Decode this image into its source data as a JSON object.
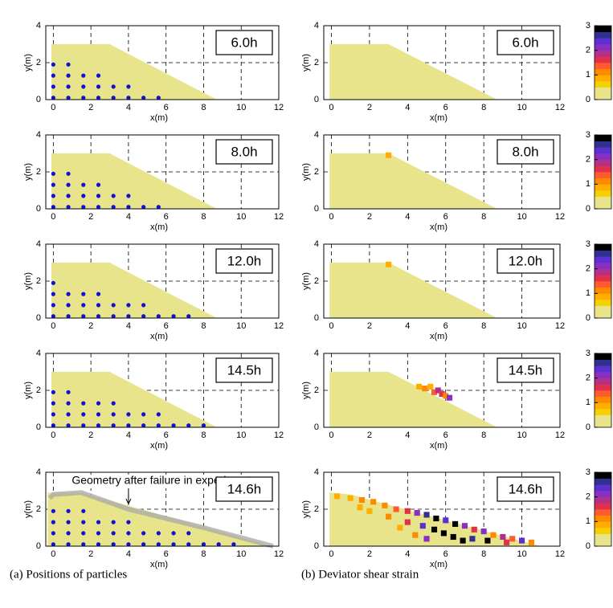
{
  "captions": [
    "(a) Positions of particles",
    "(b) Deviator shear strain"
  ],
  "chart_data": [
    {
      "type": "scatter",
      "label": "6.0h",
      "xlabel": "x(m)",
      "ylabel": "y(m)",
      "xlim": [
        -0.4,
        12
      ],
      "ylim": [
        0,
        4
      ],
      "xticks": [
        0,
        2,
        4,
        6,
        8,
        10,
        12
      ],
      "yticks": [
        0,
        2,
        4
      ],
      "grid": true,
      "soil": {
        "color": "#e8e48c",
        "x": [
          -0.1,
          -0.1,
          3,
          8.7
        ],
        "y": [
          0,
          3,
          3,
          0
        ]
      },
      "particles": {
        "color": "#1010d8",
        "x": [
          0,
          0.8,
          0,
          0.8,
          1.6,
          2.4,
          0,
          0.8,
          1.6,
          2.4,
          3.2,
          4.0,
          0,
          0.8,
          1.6,
          2.4,
          3.2,
          4.0,
          4.8,
          5.6
        ],
        "y": [
          1.9,
          1.9,
          1.3,
          1.3,
          1.3,
          1.3,
          0.7,
          0.7,
          0.7,
          0.7,
          0.7,
          0.7,
          0.1,
          0.1,
          0.1,
          0.1,
          0.1,
          0.1,
          0.1,
          0.1
        ]
      }
    },
    {
      "type": "scatter",
      "label": "8.0h",
      "xlabel": "x(m)",
      "ylabel": "y(m)",
      "xlim": [
        -0.4,
        12
      ],
      "ylim": [
        0,
        4
      ],
      "xticks": [
        0,
        2,
        4,
        6,
        8,
        10,
        12
      ],
      "yticks": [
        0,
        2,
        4
      ],
      "grid": true,
      "soil": {
        "color": "#e8e48c",
        "x": [
          -0.1,
          -0.1,
          3,
          8.7
        ],
        "y": [
          0,
          3,
          3,
          0
        ]
      },
      "particles": {
        "color": "#1010d8",
        "x": [
          0,
          0.8,
          0,
          0.8,
          1.6,
          2.4,
          0,
          0.8,
          1.6,
          2.4,
          3.2,
          4.0,
          0,
          0.8,
          1.6,
          2.4,
          3.2,
          4.0,
          4.8,
          5.6
        ],
        "y": [
          1.9,
          1.9,
          1.3,
          1.3,
          1.3,
          1.3,
          0.7,
          0.7,
          0.7,
          0.7,
          0.7,
          0.7,
          0.1,
          0.1,
          0.1,
          0.1,
          0.1,
          0.1,
          0.1,
          0.1
        ]
      }
    },
    {
      "type": "scatter",
      "label": "12.0h",
      "xlabel": "x(m)",
      "ylabel": "y(m)",
      "xlim": [
        -0.4,
        12
      ],
      "ylim": [
        0,
        4
      ],
      "xticks": [
        0,
        2,
        4,
        6,
        8,
        10,
        12
      ],
      "yticks": [
        0,
        2,
        4
      ],
      "grid": true,
      "soil": {
        "color": "#e8e48c",
        "x": [
          -0.1,
          -0.1,
          3,
          8.7
        ],
        "y": [
          0,
          3,
          3,
          0
        ]
      },
      "particles": {
        "color": "#1010d8",
        "x": [
          0,
          0,
          0.8,
          1.6,
          2.4,
          0,
          0.8,
          1.6,
          2.4,
          3.2,
          4.0,
          4.8,
          0,
          0.8,
          1.6,
          2.4,
          3.2,
          4.0,
          4.8,
          5.6,
          6.4,
          7.2
        ],
        "y": [
          1.9,
          1.3,
          1.3,
          1.3,
          1.3,
          0.7,
          0.7,
          0.7,
          0.7,
          0.7,
          0.7,
          0.7,
          0.1,
          0.1,
          0.1,
          0.1,
          0.1,
          0.1,
          0.1,
          0.1,
          0.1,
          0.1
        ]
      }
    },
    {
      "type": "scatter",
      "label": "14.5h",
      "xlabel": "x(m)",
      "ylabel": "y(m)",
      "xlim": [
        -0.4,
        12
      ],
      "ylim": [
        0,
        4
      ],
      "xticks": [
        0,
        2,
        4,
        6,
        8,
        10,
        12
      ],
      "yticks": [
        0,
        2,
        4
      ],
      "grid": true,
      "soil": {
        "color": "#e8e48c",
        "x": [
          -0.1,
          -0.1,
          3,
          8.7
        ],
        "y": [
          0,
          3,
          3,
          0
        ]
      },
      "particles": {
        "color": "#1010d8",
        "x": [
          0,
          0.8,
          0,
          0.8,
          1.6,
          2.4,
          3.2,
          0,
          0.8,
          1.6,
          2.4,
          3.2,
          4.0,
          4.8,
          5.6,
          0,
          0.8,
          1.6,
          2.4,
          3.2,
          4.0,
          4.8,
          5.6,
          6.4,
          7.2,
          8.0
        ],
        "y": [
          1.9,
          1.9,
          1.3,
          1.3,
          1.3,
          1.3,
          1.3,
          0.7,
          0.7,
          0.7,
          0.7,
          0.7,
          0.7,
          0.7,
          0.7,
          0.1,
          0.1,
          0.1,
          0.1,
          0.1,
          0.1,
          0.1,
          0.1,
          0.1,
          0.1,
          0.1
        ]
      }
    },
    {
      "type": "scatter",
      "label": "14.6h",
      "xlabel": "x(m)",
      "ylabel": "y(m)",
      "xlim": [
        -0.4,
        12
      ],
      "ylim": [
        0,
        4
      ],
      "xticks": [
        0,
        2,
        4,
        6,
        8,
        10,
        12
      ],
      "yticks": [
        0,
        2,
        4
      ],
      "grid": true,
      "annotation": "Geometry after failure in experiment",
      "experiment_geometry": {
        "color": "#a8a8a8",
        "x": [
          -0.2,
          0,
          1.5,
          4,
          8,
          11.7
        ],
        "y": [
          2.6,
          2.8,
          2.9,
          2,
          1,
          0
        ]
      },
      "soil": {
        "color": "#e8e48c",
        "x": [
          -0.3,
          -0.3,
          1.5,
          11.7
        ],
        "y": [
          0,
          2.9,
          2.9,
          0
        ]
      },
      "particles": {
        "color": "#1010d8",
        "x": [
          0,
          0.8,
          1.6,
          0,
          0.8,
          1.6,
          2.4,
          3.2,
          4.0,
          0,
          0.8,
          1.6,
          2.4,
          3.2,
          4.0,
          4.8,
          5.6,
          6.4,
          7.2,
          0,
          0.8,
          1.6,
          2.4,
          3.2,
          4.0,
          4.8,
          5.6,
          6.4,
          7.2,
          8.0,
          8.8,
          9.6
        ],
        "y": [
          1.9,
          1.9,
          1.9,
          1.3,
          1.3,
          1.3,
          1.3,
          1.3,
          1.3,
          0.7,
          0.7,
          0.7,
          0.7,
          0.7,
          0.7,
          0.7,
          0.7,
          0.7,
          0.7,
          0.1,
          0.1,
          0.1,
          0.1,
          0.1,
          0.1,
          0.1,
          0.1,
          0.1,
          0.1,
          0.1,
          0.1,
          0.1
        ]
      }
    },
    {
      "type": "heatmap",
      "label": "6.0h",
      "xlabel": "x(m)",
      "ylabel": "y(m)",
      "xlim": [
        -0.4,
        12
      ],
      "ylim": [
        0,
        4
      ],
      "xticks": [
        0,
        2,
        4,
        6,
        8,
        10,
        12
      ],
      "yticks": [
        0,
        2,
        4
      ],
      "grid": true,
      "soil": {
        "color": "#e8e48c",
        "x": [
          -0.1,
          -0.1,
          3,
          8.7
        ],
        "y": [
          0,
          3,
          3,
          0
        ]
      },
      "cells": {
        "x": [],
        "y": [],
        "values": []
      },
      "colorbar": {
        "clim": [
          0,
          3
        ],
        "ticks": [
          0,
          1,
          2,
          3
        ],
        "colors": [
          "#e8e48c",
          "#e8e48c",
          "#f5d000",
          "#ffae00",
          "#ff8a00",
          "#ff5a30",
          "#e0304a",
          "#b0308a",
          "#8a30c0",
          "#5a30d0",
          "#303090",
          "#000000"
        ]
      }
    },
    {
      "type": "heatmap",
      "label": "8.0h",
      "xlabel": "x(m)",
      "ylabel": "y(m)",
      "xlim": [
        -0.4,
        12
      ],
      "ylim": [
        0,
        4
      ],
      "xticks": [
        0,
        2,
        4,
        6,
        8,
        10,
        12
      ],
      "yticks": [
        0,
        2,
        4
      ],
      "grid": true,
      "soil": {
        "color": "#e8e48c",
        "x": [
          -0.1,
          -0.1,
          3,
          8.7
        ],
        "y": [
          0,
          3,
          3,
          0
        ]
      },
      "cells": {
        "x": [
          3.0
        ],
        "y": [
          2.9
        ],
        "values": [
          0.9
        ]
      },
      "colorbar": {
        "clim": [
          0,
          3
        ],
        "ticks": [
          0,
          1,
          2,
          3
        ],
        "colors": [
          "#e8e48c",
          "#e8e48c",
          "#f5d000",
          "#ffae00",
          "#ff8a00",
          "#ff5a30",
          "#e0304a",
          "#b0308a",
          "#8a30c0",
          "#5a30d0",
          "#303090",
          "#000000"
        ]
      }
    },
    {
      "type": "heatmap",
      "label": "12.0h",
      "xlabel": "x(m)",
      "ylabel": "y(m)",
      "xlim": [
        -0.4,
        12
      ],
      "ylim": [
        0,
        4
      ],
      "xticks": [
        0,
        2,
        4,
        6,
        8,
        10,
        12
      ],
      "yticks": [
        0,
        2,
        4
      ],
      "grid": true,
      "soil": {
        "color": "#e8e48c",
        "x": [
          -0.1,
          -0.1,
          3,
          8.7
        ],
        "y": [
          0,
          3,
          3,
          0
        ]
      },
      "cells": {
        "x": [
          3.0
        ],
        "y": [
          2.9
        ],
        "values": [
          0.9
        ]
      },
      "colorbar": {
        "clim": [
          0,
          3
        ],
        "ticks": [
          0,
          1,
          2,
          3
        ],
        "colors": [
          "#e8e48c",
          "#e8e48c",
          "#f5d000",
          "#ffae00",
          "#ff8a00",
          "#ff5a30",
          "#e0304a",
          "#b0308a",
          "#8a30c0",
          "#5a30d0",
          "#303090",
          "#000000"
        ]
      }
    },
    {
      "type": "heatmap",
      "label": "14.5h",
      "xlabel": "x(m)",
      "ylabel": "y(m)",
      "xlim": [
        -0.4,
        12
      ],
      "ylim": [
        0,
        4
      ],
      "xticks": [
        0,
        2,
        4,
        6,
        8,
        10,
        12
      ],
      "yticks": [
        0,
        2,
        4
      ],
      "grid": true,
      "soil": {
        "color": "#e8e48c",
        "x": [
          -0.1,
          -0.1,
          3,
          8.7
        ],
        "y": [
          0,
          3,
          3,
          0
        ]
      },
      "cells": {
        "x": [
          4.6,
          4.9,
          5.2,
          5.4,
          5.6,
          5.8,
          6.0,
          6.2
        ],
        "y": [
          2.2,
          2.1,
          2.2,
          1.9,
          2.0,
          1.8,
          1.7,
          1.6
        ],
        "values": [
          0.8,
          1.0,
          0.9,
          1.3,
          1.9,
          1.5,
          1.1,
          2.2
        ]
      },
      "colorbar": {
        "clim": [
          0,
          3
        ],
        "ticks": [
          0,
          1,
          2,
          3
        ],
        "colors": [
          "#e8e48c",
          "#e8e48c",
          "#f5d000",
          "#ffae00",
          "#ff8a00",
          "#ff5a30",
          "#e0304a",
          "#b0308a",
          "#8a30c0",
          "#5a30d0",
          "#303090",
          "#000000"
        ]
      }
    },
    {
      "type": "heatmap",
      "label": "14.6h",
      "xlabel": "x(m)",
      "ylabel": "y(m)",
      "xlim": [
        -0.4,
        12
      ],
      "ylim": [
        0,
        4
      ],
      "xticks": [
        0,
        2,
        4,
        6,
        8,
        10,
        12
      ],
      "yticks": [
        0,
        2,
        4
      ],
      "grid": true,
      "soil": {
        "color": "#e8e48c",
        "x": [
          -0.1,
          -0.1,
          1,
          11
        ],
        "y": [
          0,
          2.9,
          2.8,
          0
        ]
      },
      "cells": {
        "x": [
          0.3,
          1.0,
          1.6,
          2.2,
          2.8,
          3.4,
          4.0,
          4.5,
          5.0,
          5.5,
          6.0,
          6.5,
          7.0,
          7.5,
          8.0,
          8.5,
          9.0,
          9.5,
          10.0,
          10.5,
          2.0,
          3.0,
          4.0,
          4.8,
          5.4,
          5.9,
          6.4,
          6.9,
          7.4,
          8.2,
          3.6,
          4.4,
          5.0,
          1.5,
          9.2
        ],
        "y": [
          2.7,
          2.6,
          2.5,
          2.4,
          2.2,
          2.0,
          1.9,
          1.8,
          1.7,
          1.5,
          1.4,
          1.2,
          1.1,
          0.9,
          0.8,
          0.6,
          0.5,
          0.4,
          0.3,
          0.2,
          1.9,
          1.6,
          1.3,
          1.1,
          0.9,
          0.7,
          0.5,
          0.3,
          0.4,
          0.3,
          1.0,
          0.6,
          0.4,
          2.1,
          0.2
        ],
        "values": [
          0.8,
          0.9,
          1.1,
          1.2,
          1.0,
          1.3,
          1.6,
          2.2,
          2.6,
          3,
          2.4,
          2.8,
          2.0,
          1.5,
          2.2,
          1.2,
          1.8,
          1.3,
          2.3,
          1.0,
          0.9,
          1.1,
          1.5,
          2.4,
          3,
          3,
          3,
          3,
          2.7,
          3,
          0.8,
          1.2,
          2.0,
          0.8,
          1.6
        ]
      },
      "colorbar": {
        "clim": [
          0,
          3
        ],
        "ticks": [
          0,
          1,
          2,
          3
        ],
        "colors": [
          "#e8e48c",
          "#e8e48c",
          "#f5d000",
          "#ffae00",
          "#ff8a00",
          "#ff5a30",
          "#e0304a",
          "#b0308a",
          "#8a30c0",
          "#5a30d0",
          "#303090",
          "#000000"
        ]
      }
    }
  ]
}
